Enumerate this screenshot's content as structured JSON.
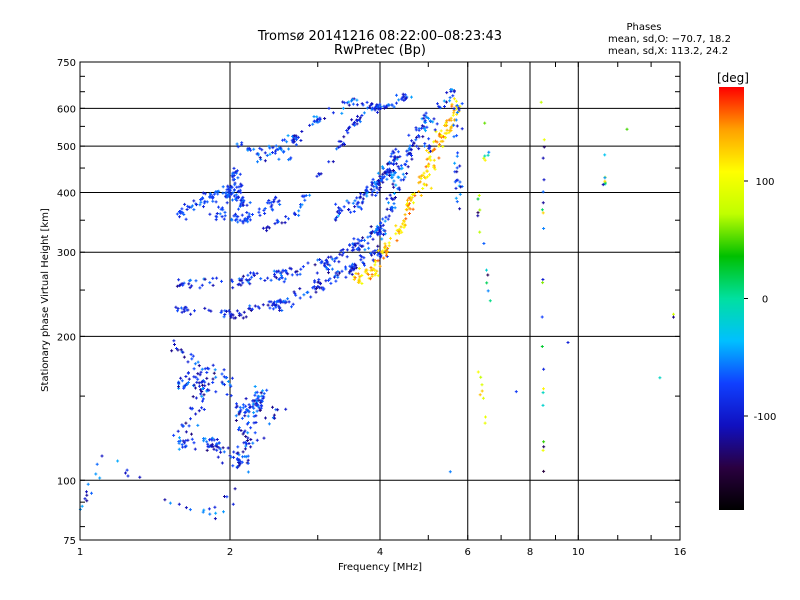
{
  "chart_data": {
    "type": "scatter",
    "title": "Tromsø 20141216 08:22:00–08:23:43",
    "subtitle": "RwPretec (Bp)",
    "xlabel": "Frequency [MHz]",
    "ylabel": "Stationary phase Virtual Height [km]",
    "x_scale": "log",
    "y_scale": "log",
    "xlim": [
      1,
      16
    ],
    "ylim": [
      75,
      750
    ],
    "x_ticks": [
      1,
      2,
      4,
      6,
      8,
      10,
      16
    ],
    "y_ticks": [
      75,
      100,
      200,
      300,
      400,
      500,
      600,
      750
    ],
    "x_grid": [
      2,
      4,
      6,
      8,
      10
    ],
    "y_grid": [
      100,
      200,
      300,
      400,
      500,
      600
    ],
    "grid": true,
    "info": {
      "heading": "Phases",
      "line_o": "mean, sd,O: −70.7, 18.2",
      "line_x": "mean, sd,X: 113.2, 24.2"
    },
    "colorbar": {
      "unit": "[deg]",
      "range": [
        -180,
        180
      ],
      "ticks": [
        100,
        0,
        -100
      ],
      "placement": "right",
      "colors": [
        "#000000",
        "#2a0040",
        "#1010c0",
        "#1040ff",
        "#00c0ff",
        "#00e0a0",
        "#00c000",
        "#c0ff00",
        "#ffff00",
        "#ffa000",
        "#ff0000"
      ]
    },
    "clusters": [
      {
        "pts": [
          [
            1.6,
            160
          ],
          [
            1.8,
            160
          ],
          [
            1.6,
            120
          ],
          [
            1.85,
            120
          ],
          [
            2.1,
            110
          ],
          [
            2.3,
            150
          ],
          [
            2.15,
            140
          ]
        ],
        "count": 240,
        "jx": 0.025,
        "jy": 0.03,
        "pmin": -130,
        "pmax": -45
      },
      {
        "pts": [
          [
            1.55,
            192
          ],
          [
            1.72,
            172
          ],
          [
            1.95,
            165
          ],
          [
            2.1,
            130
          ],
          [
            2.2,
            118
          ],
          [
            2.5,
            140
          ]
        ],
        "count": 70,
        "jx": 0.02,
        "jy": 0.025,
        "pmin": -130,
        "pmax": -50
      },
      {
        "pts": [
          [
            1.0,
            88
          ],
          [
            1.12,
            112
          ],
          [
            1.5,
            90
          ],
          [
            1.85,
            85
          ],
          [
            2.05,
            95
          ]
        ],
        "count": 35,
        "jx": 0.018,
        "jy": 0.015,
        "pmin": -120,
        "pmax": -40
      },
      {
        "pts": [
          [
            1.6,
            230
          ],
          [
            2.0,
            222
          ],
          [
            2.5,
            232
          ],
          [
            3.0,
            255
          ],
          [
            3.5,
            278
          ],
          [
            4.0,
            300
          ]
        ],
        "count": 170,
        "jx": 0.022,
        "jy": 0.02,
        "pmin": -125,
        "pmax": -55
      },
      {
        "pts": [
          [
            1.6,
            258
          ],
          [
            2.1,
            262
          ],
          [
            2.5,
            268
          ],
          [
            3.1,
            283
          ],
          [
            3.6,
            310
          ],
          [
            4.0,
            335
          ]
        ],
        "count": 170,
        "jx": 0.025,
        "jy": 0.02,
        "pmin": -125,
        "pmax": -50
      },
      {
        "pts": [
          [
            3.3,
            360
          ],
          [
            3.65,
            385
          ],
          [
            3.9,
            410
          ],
          [
            4.15,
            440
          ],
          [
            4.3,
            480
          ]
        ],
        "count": 130,
        "jx": 0.02,
        "jy": 0.025,
        "pmin": -125,
        "pmax": -40
      },
      {
        "pts": [
          [
            4.0,
            330
          ],
          [
            4.2,
            380
          ],
          [
            4.4,
            430
          ],
          [
            4.6,
            490
          ],
          [
            4.8,
            540
          ],
          [
            5.0,
            580
          ]
        ],
        "count": 110,
        "jx": 0.02,
        "jy": 0.03,
        "pmin": -120,
        "pmax": -40
      },
      {
        "pts": [
          [
            2.35,
            335
          ],
          [
            2.7,
            360
          ],
          [
            3.0,
            430
          ],
          [
            3.3,
            500
          ],
          [
            3.55,
            560
          ],
          [
            3.9,
            605
          ]
        ],
        "count": 70,
        "jx": 0.012,
        "jy": 0.012,
        "pmin": -120,
        "pmax": -50
      },
      {
        "pts": [
          [
            2.3,
            470
          ],
          [
            2.7,
            520
          ],
          [
            3.0,
            570
          ],
          [
            3.5,
            620
          ],
          [
            4.0,
            600
          ],
          [
            4.5,
            635
          ]
        ],
        "count": 110,
        "jx": 0.015,
        "jy": 0.015,
        "pmin": -120,
        "pmax": -40
      },
      {
        "pts": [
          [
            1.6,
            365
          ],
          [
            1.8,
            390
          ],
          [
            2.0,
            400
          ],
          [
            2.15,
            375
          ],
          [
            2.05,
            440
          ],
          [
            1.9,
            360
          ],
          [
            2.15,
            350
          ],
          [
            2.5,
            385
          ]
        ],
        "count": 190,
        "jx": 0.02,
        "jy": 0.02,
        "pmin": -100,
        "pmax": -55
      },
      {
        "pts": [
          [
            2.45,
            495
          ],
          [
            2.6,
            490
          ],
          [
            2.1,
            500
          ],
          [
            2.65,
            470
          ]
        ],
        "count": 30,
        "jx": 0.012,
        "jy": 0.012,
        "pmin": -90,
        "pmax": -50
      },
      {
        "pts": [
          [
            3.6,
            265
          ],
          [
            3.85,
            275
          ],
          [
            4.1,
            300
          ],
          [
            4.4,
            340
          ],
          [
            4.6,
            380
          ],
          [
            4.9,
            420
          ],
          [
            5.05,
            470
          ],
          [
            5.3,
            520
          ],
          [
            5.55,
            560
          ],
          [
            5.7,
            610
          ]
        ],
        "count": 190,
        "jx": 0.018,
        "jy": 0.025,
        "pmin": 100,
        "pmax": 160
      },
      {
        "pts": [
          [
            4.6,
            470
          ],
          [
            5.0,
            500
          ],
          [
            5.3,
            600
          ],
          [
            5.6,
            640
          ],
          [
            5.7,
            430
          ],
          [
            5.8,
            380
          ],
          [
            5.75,
            600
          ]
        ],
        "count": 60,
        "jx": 0.012,
        "jy": 0.03,
        "pmin": -120,
        "pmax": -40
      },
      {
        "pts": [
          [
            6.4,
            600
          ],
          [
            6.6,
            500
          ],
          [
            6.3,
            385
          ],
          [
            6.6,
            250
          ]
        ],
        "count": 18,
        "jx": 0.006,
        "jy": 0.05,
        "pmin": -140,
        "pmax": 140
      },
      {
        "pts": [
          [
            8.4,
            640
          ],
          [
            8.5,
            500
          ],
          [
            8.5,
            380
          ],
          [
            8.5,
            250
          ],
          [
            8.5,
            160
          ],
          [
            8.5,
            120
          ],
          [
            8.5,
            105
          ]
        ],
        "count": 22,
        "jx": 0.004,
        "jy": 0.05,
        "pmin": -150,
        "pmax": 130
      },
      {
        "pts": [
          [
            6.3,
            170
          ],
          [
            6.5,
            140
          ]
        ],
        "count": 8,
        "jx": 0.008,
        "jy": 0.05,
        "pmin": 60,
        "pmax": 140
      },
      {
        "pts": [
          [
            11.3,
            480
          ],
          [
            11.3,
            430
          ],
          [
            11.3,
            400
          ],
          [
            12.0,
            350
          ],
          [
            12.2,
            520
          ],
          [
            14.0,
            620
          ],
          [
            15.5,
            225
          ],
          [
            14.5,
            160
          ],
          [
            5.0,
            90
          ],
          [
            7.5,
            155
          ],
          [
            10.0,
            400
          ],
          [
            9.5,
            195
          ]
        ],
        "count": 14,
        "jx": 0.004,
        "jy": 0.01,
        "pmin": -130,
        "pmax": 120
      }
    ]
  }
}
